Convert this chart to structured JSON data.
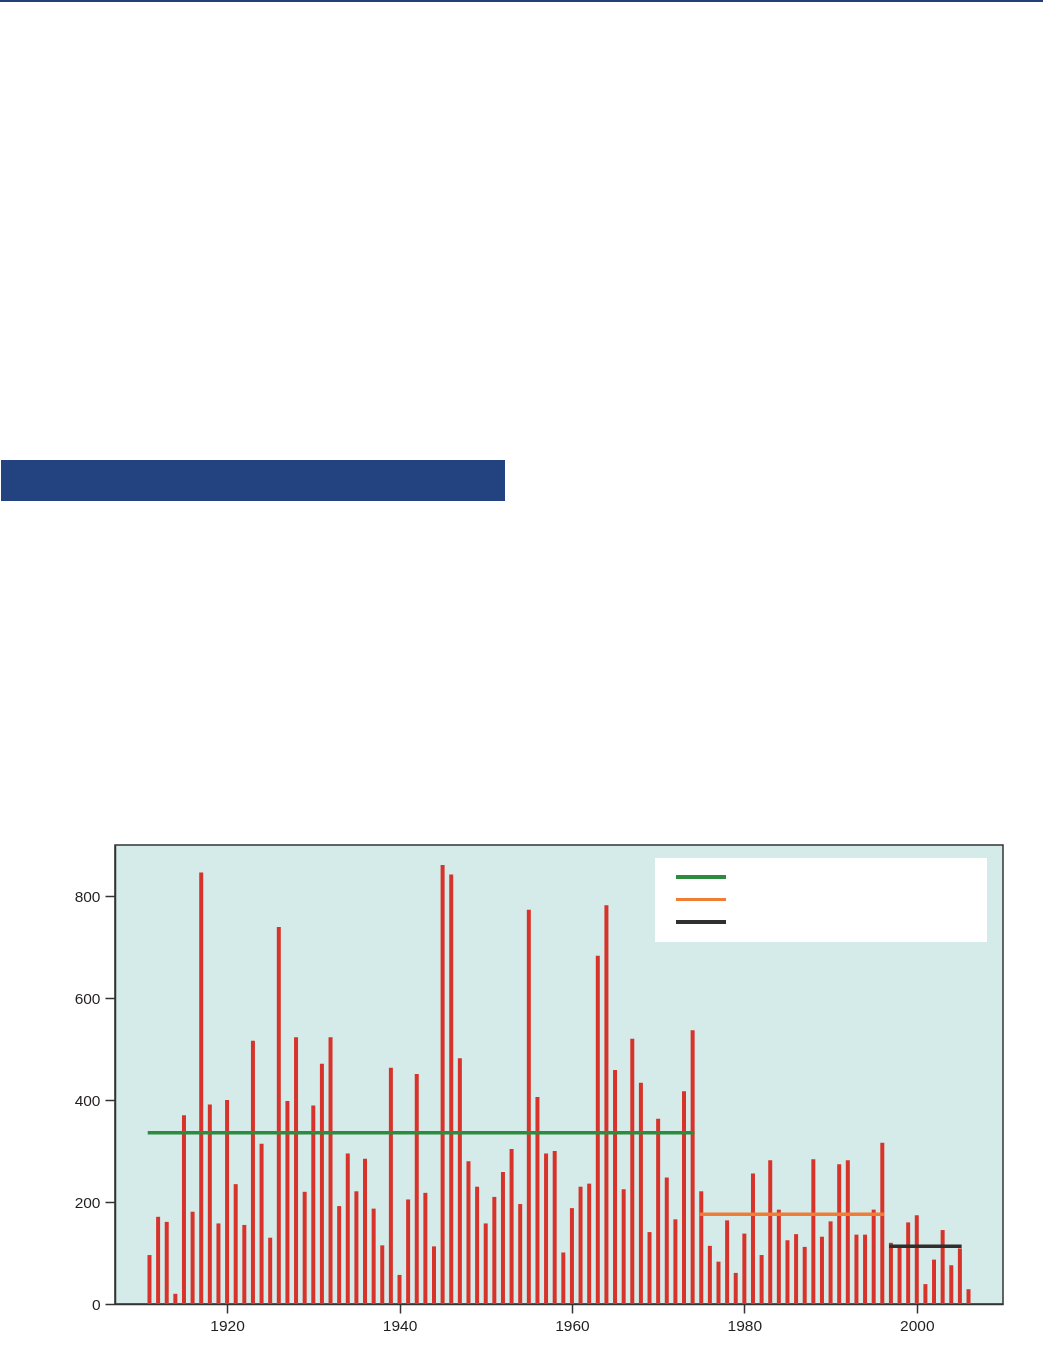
{
  "chart_data": {
    "type": "bar",
    "x": [
      1911,
      1912,
      1913,
      1914,
      1915,
      1916,
      1917,
      1918,
      1919,
      1920,
      1921,
      1922,
      1923,
      1924,
      1925,
      1926,
      1927,
      1928,
      1929,
      1930,
      1931,
      1932,
      1933,
      1934,
      1935,
      1936,
      1937,
      1938,
      1939,
      1940,
      1941,
      1942,
      1943,
      1944,
      1945,
      1946,
      1947,
      1948,
      1949,
      1950,
      1951,
      1952,
      1953,
      1954,
      1955,
      1956,
      1957,
      1958,
      1959,
      1960,
      1961,
      1962,
      1963,
      1964,
      1965,
      1966,
      1967,
      1968,
      1969,
      1970,
      1971,
      1972,
      1973,
      1974,
      1975,
      1976,
      1977,
      1978,
      1979,
      1980,
      1981,
      1982,
      1983,
      1984,
      1985,
      1986,
      1987,
      1988,
      1989,
      1990,
      1991,
      1992,
      1993,
      1994,
      1995,
      1996,
      1997,
      1998,
      1999,
      2000,
      2001,
      2002,
      2003,
      2004,
      2005,
      2006
    ],
    "series": [
      {
        "color": "#d7332a",
        "values": [
          96,
          171,
          161,
          20,
          370,
          181,
          846,
          391,
          158,
          400,
          235,
          155,
          516,
          314,
          130,
          739,
          398,
          523,
          220,
          389,
          471,
          523,
          192,
          295,
          221,
          285,
          187,
          115,
          463,
          57,
          205,
          451,
          218,
          113,
          861,
          842,
          482,
          280,
          230,
          158,
          210,
          259,
          304,
          196,
          773,
          406,
          295,
          300,
          101,
          188,
          230,
          236,
          683,
          782,
          459,
          225,
          520,
          434,
          141,
          363,
          248,
          166,
          417,
          537,
          221,
          114,
          83,
          164,
          61,
          138,
          256,
          96,
          282,
          185,
          125,
          137,
          112,
          284,
          132,
          162,
          274,
          282,
          136,
          136,
          185,
          316,
          120,
          115,
          160,
          174,
          39,
          87,
          145,
          76,
          109,
          29
        ]
      },
      {
        "type": "line",
        "color": "#2e8b3e",
        "x": [
          1911,
          1974
        ],
        "values": [
          336,
          336
        ]
      },
      {
        "type": "line",
        "color": "#ef7d35",
        "x": [
          1975,
          1996
        ],
        "values": [
          176,
          176
        ]
      },
      {
        "type": "line",
        "color": "#2f2f2f",
        "x": [
          1997,
          2005
        ],
        "values": [
          113,
          113
        ]
      }
    ],
    "xlim": [
      1907,
      2010
    ],
    "xticks": [
      1920,
      1940,
      1960,
      1980,
      2000
    ],
    "ylim": [
      0,
      900
    ],
    "yticks": [
      0,
      200,
      400,
      600,
      800
    ]
  }
}
